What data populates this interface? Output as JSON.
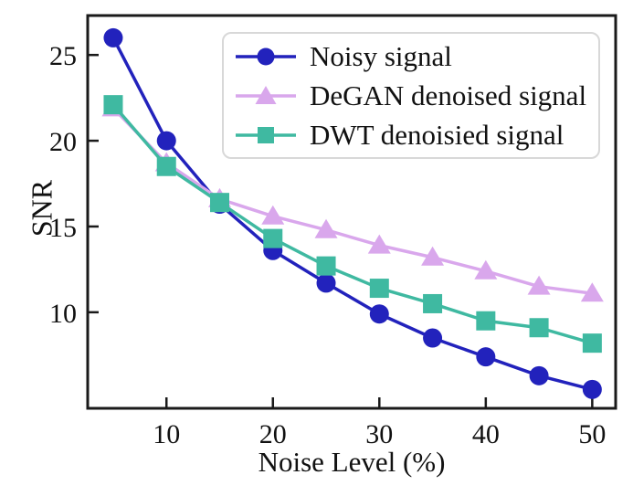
{
  "chart_data": {
    "type": "line",
    "title": "",
    "xlabel": "Noise Level (%)",
    "ylabel": "SNR",
    "x": [
      5,
      10,
      15,
      20,
      25,
      30,
      35,
      40,
      45,
      50
    ],
    "xlim": [
      2.6,
      52.2
    ],
    "ylim": [
      4.4,
      27.3
    ],
    "xticks": [
      10,
      20,
      30,
      40,
      50
    ],
    "yticks": [
      10,
      15,
      20,
      25
    ],
    "grid": false,
    "legend_position": "upper right",
    "frame_color": "#1a1a1a",
    "series": [
      {
        "name": "Noisy signal",
        "marker": "circle",
        "color": "#2222bc",
        "values": [
          26.0,
          20.0,
          16.3,
          13.6,
          11.7,
          9.9,
          8.5,
          7.4,
          6.3,
          5.5
        ]
      },
      {
        "name": "DeGAN denoised signal",
        "marker": "triangle",
        "color": "#d9a7ec",
        "values": [
          21.9,
          18.7,
          16.6,
          15.6,
          14.8,
          13.9,
          13.2,
          12.4,
          11.5,
          11.1
        ]
      },
      {
        "name": "DWT denoisied signal",
        "marker": "square",
        "color": "#3fb9a1",
        "values": [
          22.1,
          18.5,
          16.4,
          14.3,
          12.7,
          11.4,
          10.5,
          9.5,
          9.1,
          8.2
        ]
      }
    ]
  }
}
